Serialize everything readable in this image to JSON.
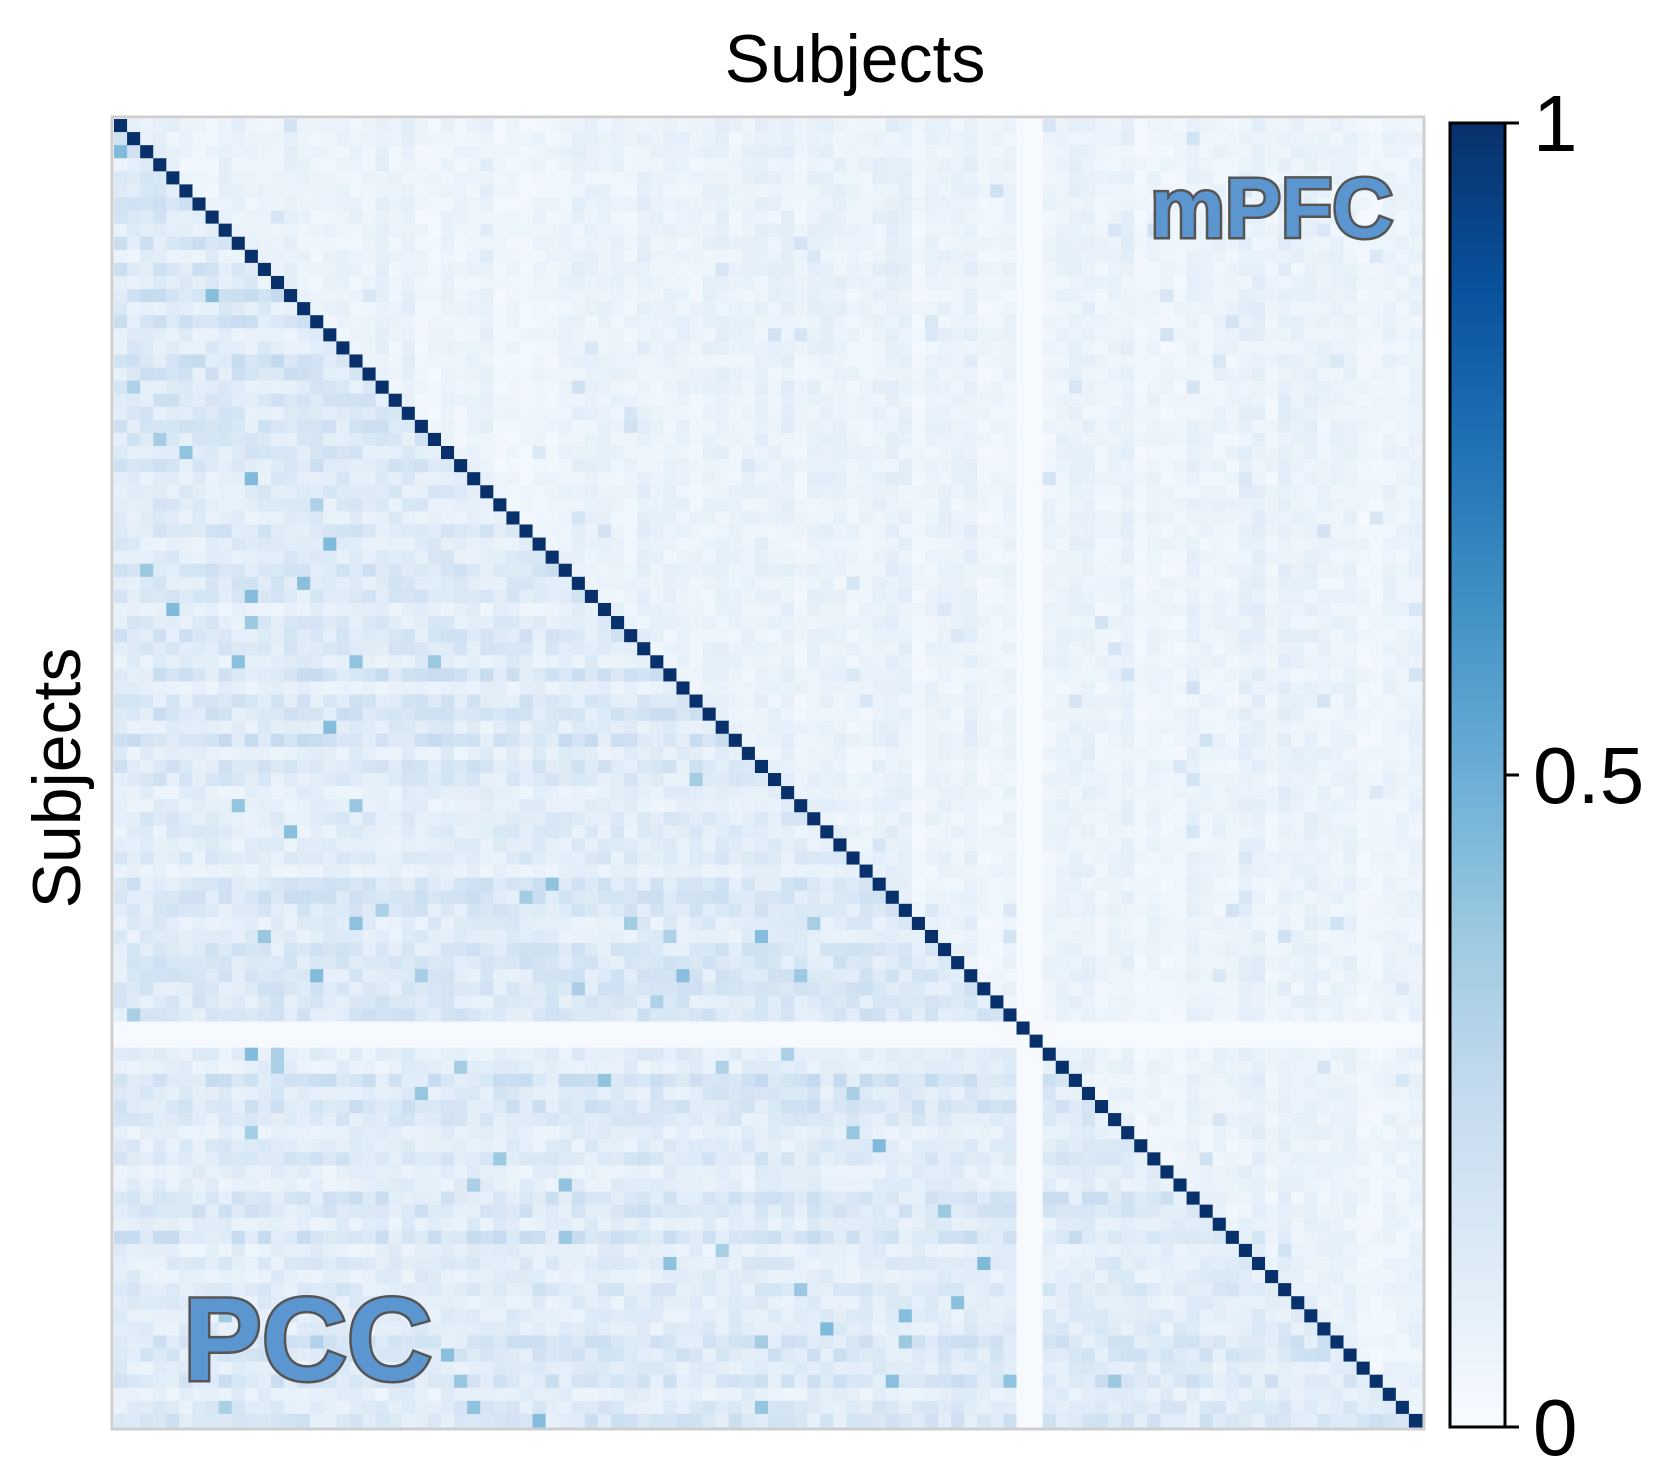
{
  "chart_data": {
    "type": "heatmap",
    "title": "",
    "xlabel": "Subjects",
    "ylabel": "Subjects",
    "n_subjects": 100,
    "diagonal_value": 1,
    "upper_triangle_label": "mPFC",
    "lower_triangle_label": "PCC",
    "upper_triangle_typical_value": 0.06,
    "lower_triangle_typical_value": 0.13,
    "upper_triangle_max_value": 0.2,
    "lower_triangle_max_value": 0.45,
    "near_zero_subjects": [
      69,
      70
    ],
    "colorbar": {
      "min": 0,
      "max": 1,
      "ticks": [
        "0",
        "0.5",
        "1"
      ],
      "colormap": "Blues",
      "low_color": "#f7fbff",
      "mid_color": "#6aaed6",
      "high_color": "#08306b"
    },
    "grid": false,
    "legend": "none"
  }
}
